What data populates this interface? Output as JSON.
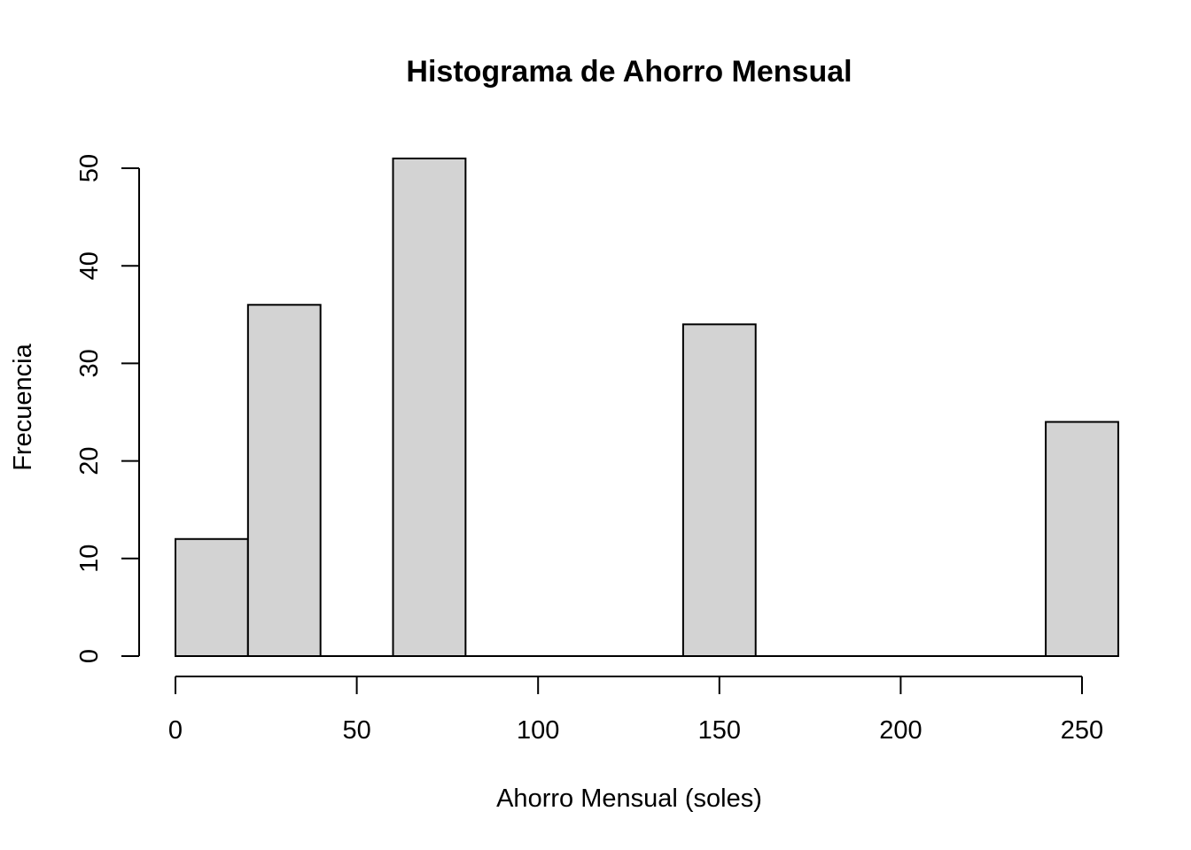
{
  "chart_data": {
    "type": "bar",
    "title": "Histograma de Ahorro Mensual",
    "xlabel": "Ahorro Mensual (soles)",
    "ylabel": "Frecuencia",
    "bins": [
      {
        "start": 0,
        "end": 20,
        "count": 12
      },
      {
        "start": 20,
        "end": 40,
        "count": 36
      },
      {
        "start": 40,
        "end": 60,
        "count": 0
      },
      {
        "start": 60,
        "end": 80,
        "count": 51
      },
      {
        "start": 80,
        "end": 100,
        "count": 0
      },
      {
        "start": 100,
        "end": 120,
        "count": 0
      },
      {
        "start": 120,
        "end": 140,
        "count": 0
      },
      {
        "start": 140,
        "end": 160,
        "count": 34
      },
      {
        "start": 160,
        "end": 180,
        "count": 0
      },
      {
        "start": 180,
        "end": 200,
        "count": 0
      },
      {
        "start": 200,
        "end": 220,
        "count": 0
      },
      {
        "start": 220,
        "end": 240,
        "count": 0
      },
      {
        "start": 240,
        "end": 260,
        "count": 24
      }
    ],
    "xticks": [
      "0",
      "50",
      "100",
      "150",
      "200",
      "250"
    ],
    "yticks": [
      "0",
      "10",
      "20",
      "30",
      "40",
      "50"
    ],
    "xlim": [
      0,
      260
    ],
    "ylim": [
      0,
      50
    ],
    "bar_color": "#d3d3d3",
    "grid": false
  }
}
